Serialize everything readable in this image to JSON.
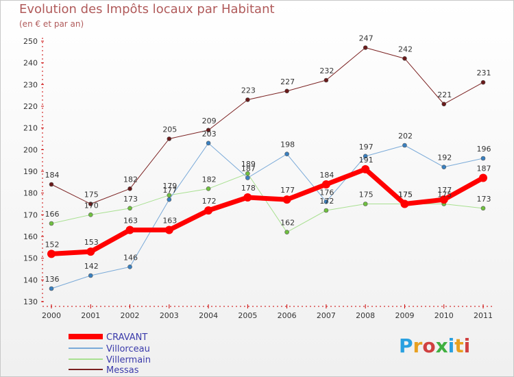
{
  "title": "Evolution des Impôts locaux par Habitant",
  "subtitle": "(en € et par an)",
  "brand": "Proxiti",
  "brand_colors": [
    "#2aa0e0",
    "#e8a020",
    "#d04040",
    "#40b040",
    "#2aa0e0",
    "#e8a020",
    "#d04040"
  ],
  "chart_data": {
    "type": "line",
    "title": "Evolution des Impôts locaux par Habitant",
    "subtitle": "(en € et par an)",
    "xlabel": "",
    "ylabel": "",
    "x": [
      "2000",
      "2001",
      "2002",
      "2003",
      "2004",
      "2005",
      "2006",
      "2007",
      "2008",
      "2009",
      "2010",
      "2011"
    ],
    "ylim": [
      130,
      250
    ],
    "yticks": [
      130,
      140,
      150,
      160,
      170,
      180,
      190,
      200,
      210,
      220,
      230,
      240,
      250
    ],
    "grid": false,
    "legend_position": "bottom-left",
    "series": [
      {
        "name": "Messas",
        "color": "#7a2020",
        "point_color": "#6a1a1a",
        "width": 1,
        "values": [
          184,
          175,
          182,
          205,
          209,
          223,
          227,
          232,
          247,
          242,
          221,
          231
        ]
      },
      {
        "name": "Villermain",
        "color": "#a8e090",
        "point_color": "#70c040",
        "width": 1,
        "values": [
          166,
          170,
          173,
          179,
          182,
          189,
          162,
          172,
          175,
          175,
          175,
          173
        ]
      },
      {
        "name": "Villorceau",
        "color": "#7aaad8",
        "point_color": "#3a80c0",
        "width": 1,
        "values": [
          136,
          142,
          146,
          177,
          203,
          187,
          198,
          176,
          197,
          202,
          192,
          196
        ]
      },
      {
        "name": "CRAVANT",
        "color": "#ff0000",
        "point_color": "#ff0000",
        "width": 7,
        "values": [
          152,
          153,
          163,
          163,
          172,
          178,
          177,
          184,
          191,
          175,
          177,
          187
        ],
        "labels": [
          "152",
          "153",
          "163",
          "163",
          "172",
          "178",
          "177",
          "184",
          "191",
          "175",
          "177",
          "187"
        ]
      }
    ],
    "value_labels": {
      "Messas": [
        "184",
        "175",
        "182",
        "205",
        "209",
        "223",
        "227",
        "232",
        "247",
        "242",
        "221",
        "231"
      ],
      "Villermain": [
        "166",
        "170",
        "173",
        "179",
        "182",
        "189",
        "162",
        "172",
        "175",
        "175",
        "175",
        "173"
      ],
      "Villorceau": [
        "136",
        "142",
        "146",
        "177",
        "203",
        "187",
        "198",
        "176",
        "197",
        "202",
        "192",
        "196"
      ]
    },
    "legend": [
      "CRAVANT",
      "Villorceau",
      "Villermain",
      "Messas"
    ]
  }
}
